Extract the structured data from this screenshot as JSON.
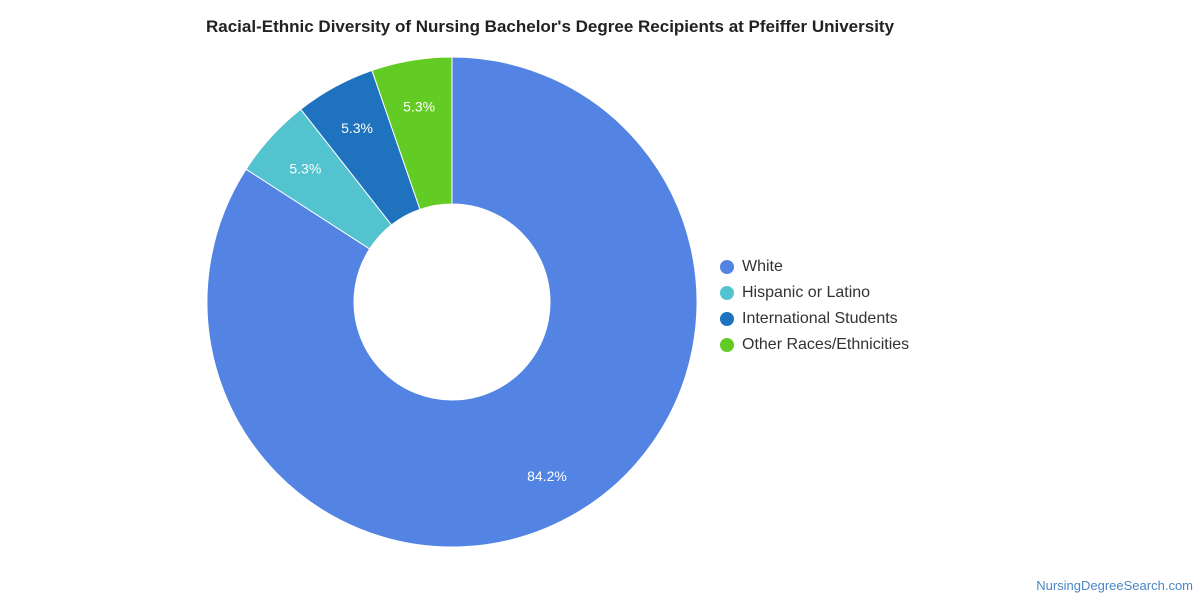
{
  "chart_data": {
    "type": "pie",
    "subtype": "donut",
    "title": "Racial-Ethnic Diversity of Nursing Bachelor's Degree Recipients at Pfeiffer University",
    "categories": [
      "White",
      "Hispanic or Latino",
      "International Students",
      "Other Races/Ethnicities"
    ],
    "values": [
      84.2,
      5.3,
      5.3,
      5.3
    ],
    "value_labels": [
      "84.2%",
      "5.3%",
      "5.3%",
      "5.3%"
    ],
    "colors": [
      "#5384e3",
      "#52c3cf",
      "#1f72bd",
      "#63cc24"
    ],
    "legend_position": "right"
  },
  "watermark": "NursingDegreeSearch.com"
}
